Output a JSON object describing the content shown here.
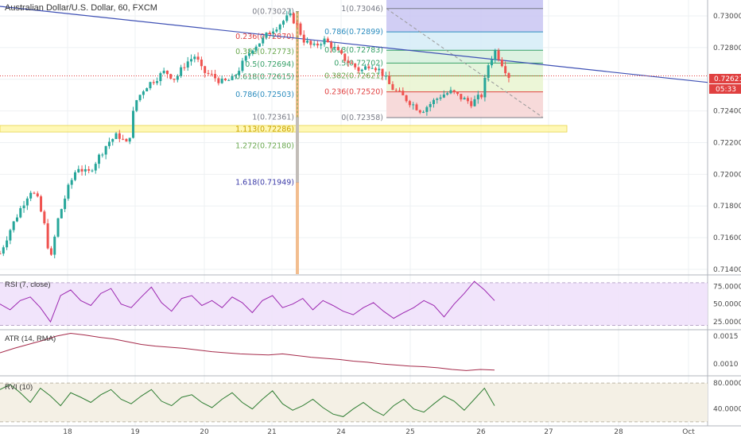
{
  "header": {
    "title": "Australian Dollar/U.S. Dollar, 60, FXCM"
  },
  "price_axis": {
    "ticks": [
      "0.73000",
      "0.72800",
      "0.72400",
      "0.72200",
      "0.72000",
      "0.71800",
      "0.71600",
      "0.71400"
    ],
    "last_price": "0.72621",
    "countdown": "05:33"
  },
  "time_axis": {
    "labels": [
      "18",
      "19",
      "20",
      "21",
      "24",
      "25",
      "26",
      "27",
      "28",
      "Oct"
    ]
  },
  "fib_left": {
    "levels": [
      {
        "label": "0(0.73027)",
        "price": 0.73027,
        "color": "#787b86"
      },
      {
        "label": "0.236(0.72870)",
        "price": 0.7287,
        "color": "#e04040"
      },
      {
        "label": "0.382(0.72773)",
        "price": 0.72773,
        "color": "#6aa84f"
      },
      {
        "label": "0.5(0.72694)",
        "price": 0.72694,
        "color": "#38a169"
      },
      {
        "label": "0.618(0.72615)",
        "price": 0.72615,
        "color": "#38a169"
      },
      {
        "label": "0.786(0.72503)",
        "price": 0.72503,
        "color": "#2b8cbe"
      },
      {
        "label": "1(0.72361)",
        "price": 0.72361,
        "color": "#787b86"
      },
      {
        "label": "1.113(0.72286)",
        "price": 0.72286,
        "color": "#c9a400"
      },
      {
        "label": "1.272(0.72180)",
        "price": 0.7218,
        "color": "#6aa84f"
      },
      {
        "label": "1.618(0.71949)",
        "price": 0.71949,
        "color": "#3b3ba8"
      }
    ]
  },
  "fib_right": {
    "levels": [
      {
        "label": "1(0.73046)",
        "price": 0.73046,
        "color": "#787b86"
      },
      {
        "label": "0.786(0.72899)",
        "price": 0.72899,
        "color": "#2b8cbe"
      },
      {
        "label": "0.618(0.72783)",
        "price": 0.72783,
        "color": "#38a169"
      },
      {
        "label": "0.5(0.72702)",
        "price": 0.72702,
        "color": "#38a169"
      },
      {
        "label": "0.382(0.72621)",
        "price": 0.72621,
        "color": "#6aa84f"
      },
      {
        "label": "0.236(0.72520)",
        "price": 0.7252,
        "color": "#e04040"
      },
      {
        "label": "0(0.72358)",
        "price": 0.72358,
        "color": "#787b86"
      }
    ]
  },
  "indicators": {
    "rsi": {
      "label": "RSI (7, close)",
      "ticks": [
        "75.0000",
        "50.0000",
        "25.0000"
      ],
      "color": "#9c27b0"
    },
    "atr": {
      "label": "ATR (14, RMA)",
      "ticks": [
        "0.0015",
        "0.0010"
      ],
      "color": "#a52a4a"
    },
    "rvi": {
      "label": "RVI (10)",
      "ticks": [
        "80.0000",
        "40.0000"
      ],
      "color": "#2e7d32"
    }
  },
  "colors": {
    "up": "#26a69a",
    "down": "#ef5350",
    "trendline": "#3f51b5",
    "highlight_band": "#fff59d",
    "price_marker": "#e04040"
  },
  "chart_data": {
    "type": "candlestick",
    "title": "Australian Dollar/U.S. Dollar, 60, FXCM",
    "ylim": [
      0.7137,
      0.731
    ],
    "close_path": [
      [
        0.0,
        0.715
      ],
      [
        0.3,
        0.7165
      ],
      [
        0.6,
        0.7178
      ],
      [
        0.9,
        0.719
      ],
      [
        1.1,
        0.7185
      ],
      [
        1.3,
        0.717
      ],
      [
        1.5,
        0.7145
      ],
      [
        1.7,
        0.717
      ],
      [
        2.0,
        0.719
      ],
      [
        2.3,
        0.7205
      ],
      [
        2.6,
        0.72
      ],
      [
        2.9,
        0.721
      ],
      [
        3.2,
        0.722
      ],
      [
        3.5,
        0.7225
      ],
      [
        3.8,
        0.7218
      ],
      [
        4.0,
        0.7245
      ],
      [
        4.3,
        0.7255
      ],
      [
        4.6,
        0.726
      ],
      [
        4.9,
        0.7265
      ],
      [
        5.2,
        0.726
      ],
      [
        5.5,
        0.727
      ],
      [
        5.8,
        0.7275
      ],
      [
        6.0,
        0.7265
      ],
      [
        6.3,
        0.7262
      ],
      [
        6.6,
        0.7258
      ],
      [
        6.9,
        0.726
      ],
      [
        7.2,
        0.727
      ],
      [
        7.5,
        0.728
      ],
      [
        7.8,
        0.7285
      ],
      [
        8.0,
        0.729
      ],
      [
        8.3,
        0.7295
      ],
      [
        8.6,
        0.73
      ],
      [
        8.8,
        0.7295
      ],
      [
        9.0,
        0.7285
      ],
      [
        9.3,
        0.728
      ],
      [
        9.6,
        0.7285
      ],
      [
        9.9,
        0.728
      ],
      [
        10.1,
        0.7275
      ],
      [
        10.4,
        0.727
      ],
      [
        10.7,
        0.7265
      ],
      [
        11.0,
        0.727
      ],
      [
        11.3,
        0.7265
      ],
      [
        11.6,
        0.7255
      ],
      [
        11.9,
        0.725
      ],
      [
        12.2,
        0.7245
      ],
      [
        12.5,
        0.724
      ],
      [
        12.8,
        0.7245
      ],
      [
        13.1,
        0.725
      ],
      [
        13.4,
        0.7252
      ],
      [
        13.7,
        0.7248
      ],
      [
        14.0,
        0.7245
      ],
      [
        14.3,
        0.725
      ],
      [
        14.5,
        0.727
      ],
      [
        14.7,
        0.7278
      ],
      [
        14.9,
        0.727
      ],
      [
        15.1,
        0.7262
      ]
    ],
    "trendline": {
      "start": [
        0.0,
        0.7306
      ],
      "end": [
        21.0,
        0.7258
      ]
    },
    "current_price": 0.72621,
    "highlight_band": [
      0.72267,
      0.72308
    ],
    "rsi": [
      50,
      42,
      55,
      60,
      45,
      25,
      62,
      70,
      55,
      48,
      65,
      72,
      50,
      45,
      60,
      74,
      52,
      40,
      58,
      62,
      48,
      55,
      45,
      60,
      52,
      38,
      55,
      62,
      45,
      50,
      58,
      42,
      55,
      48,
      40,
      35,
      45,
      52,
      40,
      30,
      38,
      45,
      55,
      48,
      32,
      50,
      65,
      82,
      70,
      55
    ],
    "atr": [
      0.0012,
      0.00128,
      0.00135,
      0.00142,
      0.0015,
      0.00155,
      0.00152,
      0.00148,
      0.00145,
      0.0014,
      0.00135,
      0.00132,
      0.0013,
      0.00128,
      0.00125,
      0.00122,
      0.0012,
      0.00118,
      0.00117,
      0.00116,
      0.00118,
      0.00115,
      0.00112,
      0.0011,
      0.00108,
      0.00105,
      0.00103,
      0.001,
      0.00098,
      0.00096,
      0.00095,
      0.00093,
      0.0009,
      0.00088,
      0.0009,
      0.00089
    ],
    "rvi": [
      70,
      78,
      65,
      50,
      72,
      60,
      45,
      65,
      58,
      50,
      62,
      70,
      55,
      48,
      60,
      70,
      52,
      45,
      58,
      62,
      50,
      42,
      55,
      65,
      50,
      40,
      55,
      68,
      48,
      38,
      45,
      55,
      42,
      32,
      28,
      40,
      50,
      38,
      30,
      45,
      55,
      40,
      35,
      48,
      60,
      52,
      38,
      55,
      72,
      45
    ]
  }
}
